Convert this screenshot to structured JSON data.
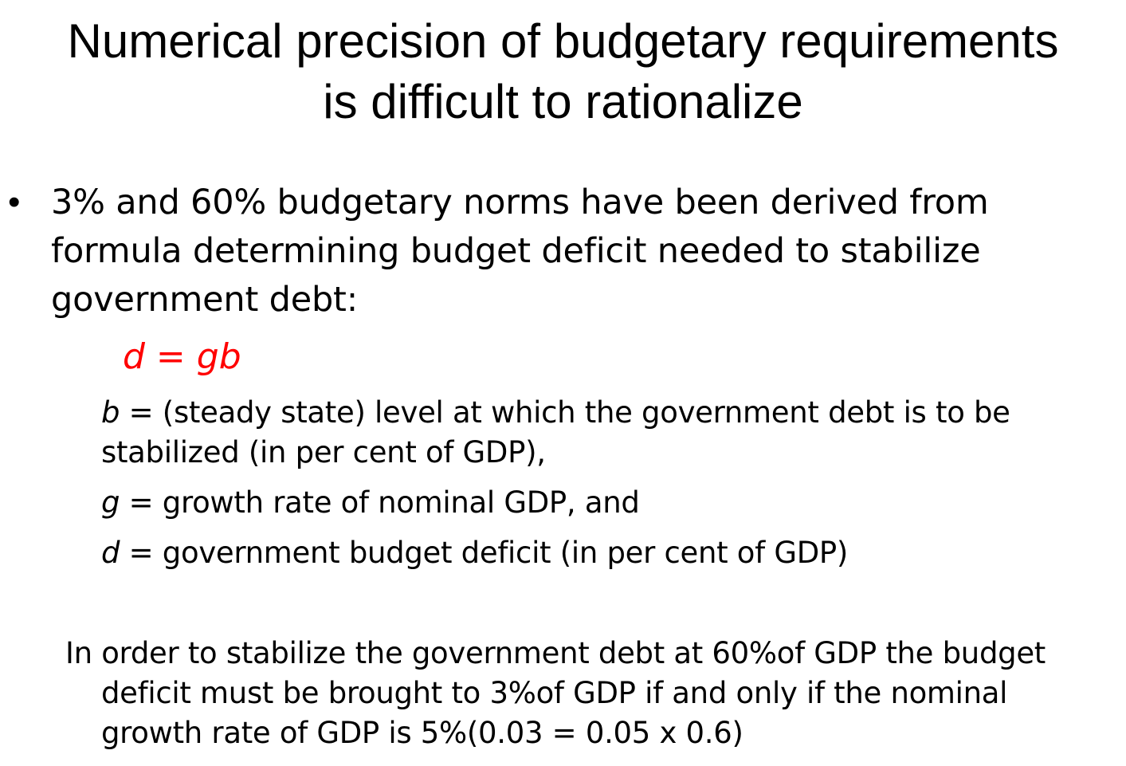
{
  "slide": {
    "title_lines": [
      "Numerical precision of budgetary  requirements",
      "is difficult to rationalize"
    ],
    "bullet": {
      "marker": "•",
      "lines": [
        "3% and 60% budgetary norms have been derived from",
        "formula determining budget deficit needed to stabilize",
        "government debt:"
      ]
    },
    "formula": "d = gb",
    "formula_color": "#ff0000",
    "definitions": [
      {
        "var": "b",
        "text_line1": " = (steady state) level at which the government debt is to be",
        "text_line2": "stabilized (in per cent of GDP),"
      },
      {
        "var": "g",
        "text": " = growth rate of nominal GDP, and"
      },
      {
        "var": "d",
        "text": " = government budget deficit (in per cent of GDP)"
      }
    ],
    "conclusion_lines": [
      "In order to stabilize the government debt at 60%of GDP the budget",
      "deficit must be brought to 3%of GDP if and only if the nominal",
      "growth rate of GDP is 5%(0.03 = 0.05 x 0.6)"
    ]
  }
}
